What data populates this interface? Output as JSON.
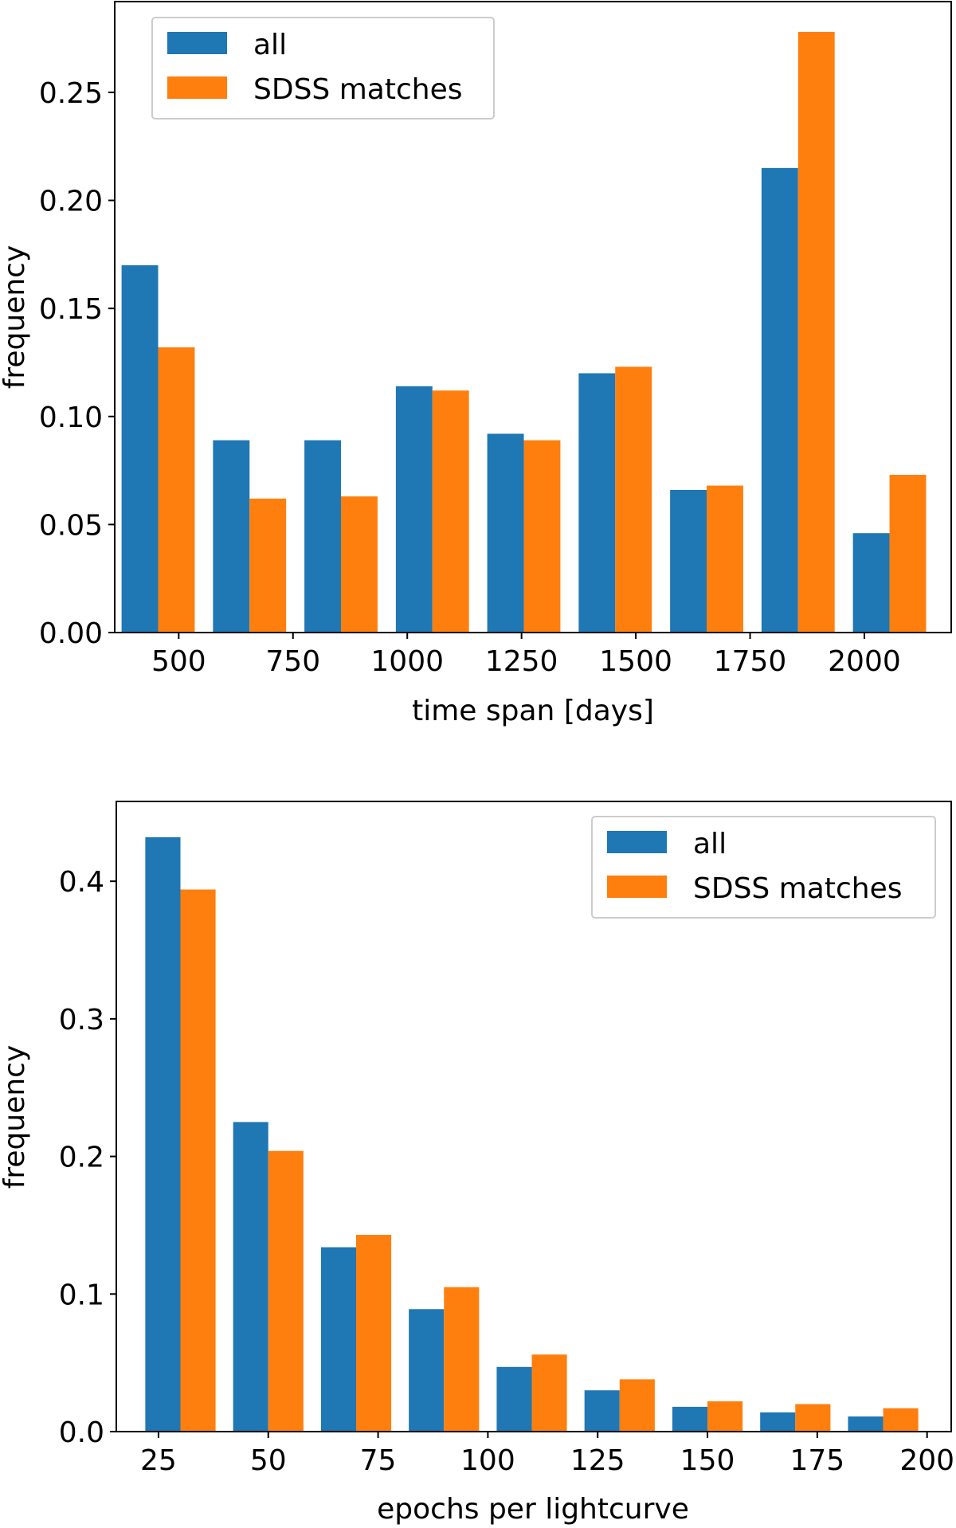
{
  "chart_data": [
    {
      "type": "bar",
      "xlabel": "time span [days]",
      "ylabel": "frequency",
      "x_ticks": [
        500,
        750,
        1000,
        1250,
        1500,
        1750,
        2000
      ],
      "x_tick_labels": [
        "500",
        "750",
        "1000",
        "1250",
        "1500",
        "1750",
        "2000"
      ],
      "y_ticks": [
        0.0,
        0.05,
        0.1,
        0.15,
        0.2,
        0.25
      ],
      "y_tick_labels": [
        "0.00",
        "0.05",
        "0.10",
        "0.15",
        "0.20",
        "0.25"
      ],
      "xlim": [
        360,
        2190
      ],
      "ylim": [
        0,
        0.292
      ],
      "bin_centers": [
        455,
        655,
        855,
        1055,
        1255,
        1455,
        1655,
        1855,
        2055
      ],
      "bin_width": 200,
      "legend_position": "upper-left",
      "grid": false,
      "series": [
        {
          "name": "all",
          "color": "#1f77b4",
          "values": [
            0.17,
            0.089,
            0.089,
            0.114,
            0.092,
            0.12,
            0.066,
            0.215,
            0.046
          ]
        },
        {
          "name": "SDSS matches",
          "color": "#ff7f0e",
          "values": [
            0.132,
            0.062,
            0.063,
            0.112,
            0.089,
            0.123,
            0.068,
            0.278,
            0.073
          ]
        }
      ]
    },
    {
      "type": "bar",
      "xlabel": "epochs per lightcurve",
      "ylabel": "frequency",
      "x_ticks": [
        25,
        50,
        75,
        100,
        125,
        150,
        175,
        200
      ],
      "x_tick_labels": [
        "25",
        "50",
        "75",
        "100",
        "125",
        "150",
        "175",
        "200"
      ],
      "y_ticks": [
        0.0,
        0.1,
        0.2,
        0.3,
        0.4
      ],
      "y_tick_labels": [
        "0.0",
        "0.1",
        "0.2",
        "0.3",
        "0.4"
      ],
      "xlim": [
        15.4,
        205.5
      ],
      "ylim": [
        0,
        0.458
      ],
      "bin_centers": [
        30,
        50,
        70,
        90,
        110,
        130,
        150,
        170,
        190
      ],
      "bin_width": 20,
      "legend_position": "upper-right",
      "grid": false,
      "series": [
        {
          "name": "all",
          "color": "#1f77b4",
          "values": [
            0.432,
            0.225,
            0.134,
            0.089,
            0.047,
            0.03,
            0.018,
            0.014,
            0.011
          ]
        },
        {
          "name": "SDSS matches",
          "color": "#ff7f0e",
          "values": [
            0.394,
            0.204,
            0.143,
            0.105,
            0.056,
            0.038,
            0.022,
            0.02,
            0.017
          ]
        }
      ]
    }
  ]
}
